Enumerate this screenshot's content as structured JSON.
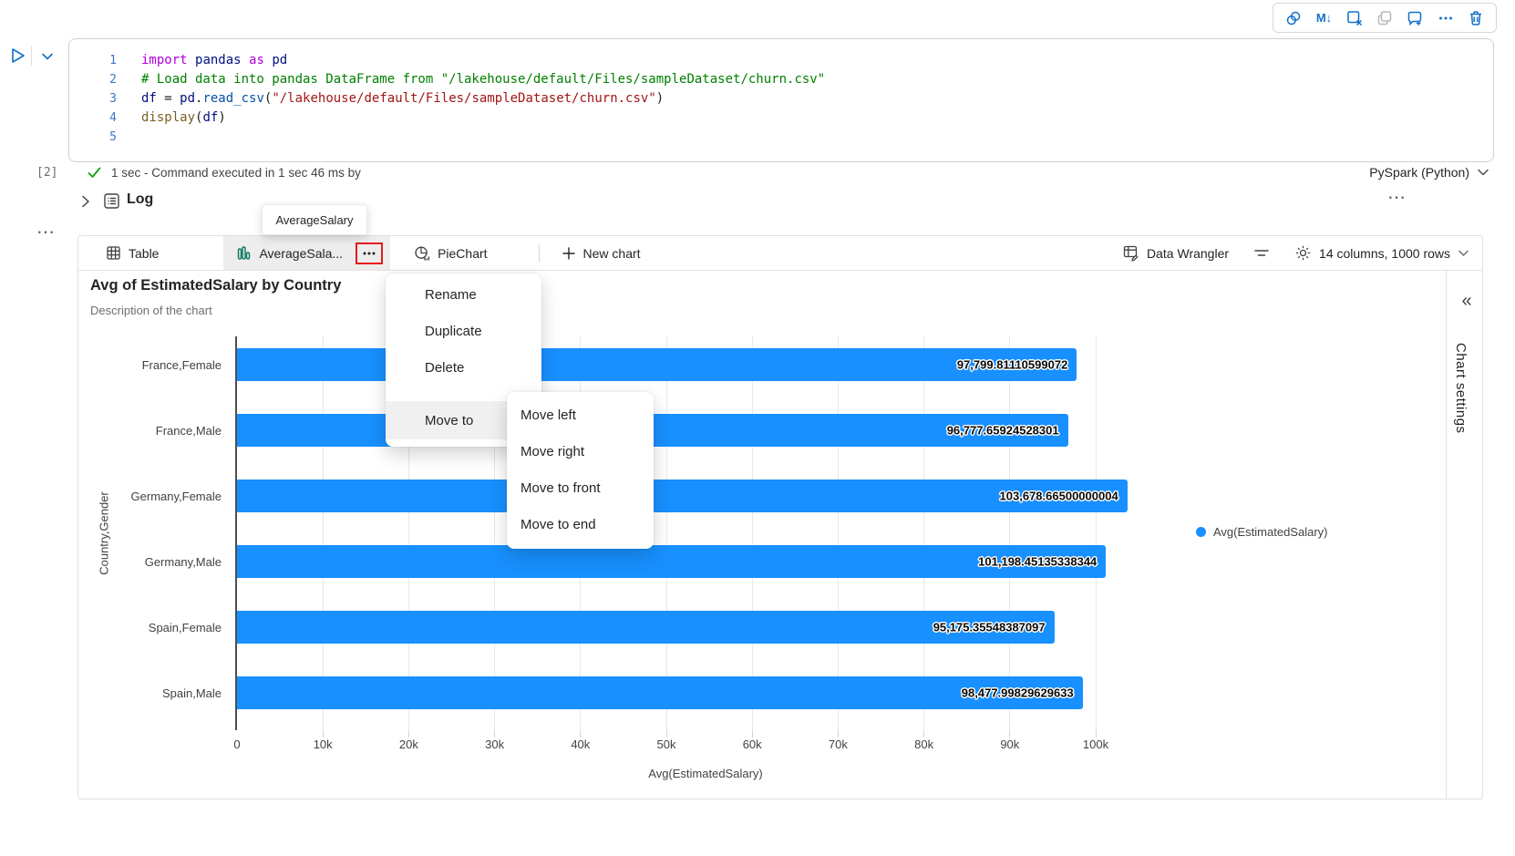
{
  "colors": {
    "accent_blue": "#1170c9",
    "bar_blue": "#1890ff",
    "tab_icon_teal": "#117865",
    "annotation_red": "#e8191f",
    "check_green": "#13a10e"
  },
  "cell_toolbar": {
    "icons": [
      "copilot-icon",
      "markdown-down-icon",
      "clear-outputs-icon",
      "copy-cell-icon",
      "add-comment-icon",
      "more-commands-icon",
      "delete-cell-icon"
    ]
  },
  "code": {
    "lines": [
      {
        "n": "1",
        "segs": [
          [
            "kw",
            "import"
          ],
          [
            "pl",
            " "
          ],
          [
            "name",
            "pandas"
          ],
          [
            "pl",
            " "
          ],
          [
            "kw",
            "as"
          ],
          [
            "pl",
            " "
          ],
          [
            "name",
            "pd"
          ]
        ]
      },
      {
        "n": "2",
        "segs": [
          [
            "cm",
            "# Load data into pandas DataFrame from \"/lakehouse/default/Files/sampleDataset/churn.csv\""
          ]
        ]
      },
      {
        "n": "3",
        "segs": [
          [
            "name",
            "df"
          ],
          [
            "pl",
            " = "
          ],
          [
            "name",
            "pd"
          ],
          [
            "pl",
            "."
          ],
          [
            "call",
            "read_csv"
          ],
          [
            "pl",
            "("
          ],
          [
            "str",
            "\"/lakehouse/default/Files/sampleDataset/churn.csv\""
          ],
          [
            "pl",
            ")"
          ]
        ]
      },
      {
        "n": "4",
        "segs": [
          [
            "fn",
            "display"
          ],
          [
            "pl",
            "("
          ],
          [
            "name",
            "df"
          ],
          [
            "pl",
            ")"
          ]
        ]
      },
      {
        "n": "5",
        "segs": []
      }
    ]
  },
  "status": {
    "execution_count": "[2]",
    "message": "1 sec - Command executed in 1 sec 46 ms by",
    "language": "PySpark (Python)"
  },
  "log": {
    "label": "Log",
    "more": "⋯"
  },
  "cell_more": "⋯",
  "tooltip": {
    "text": "AverageSalary"
  },
  "chart_tabs": {
    "table": "Table",
    "average": "AverageSala...",
    "pie": "PieChart",
    "new_chart": "New chart"
  },
  "tabbar_right": {
    "data_wrangler": "Data Wrangler",
    "summary": "14 columns, 1000 rows"
  },
  "chart_header": {
    "title": "Avg of EstimatedSalary by Country",
    "description": "Description of the chart"
  },
  "context_menu": {
    "items": [
      "Rename",
      "Duplicate",
      "Delete"
    ],
    "move_to": "Move to",
    "submenu": [
      "Move left",
      "Move right",
      "Move to front",
      "Move to end"
    ]
  },
  "settings_panel": {
    "label": "Chart settings"
  },
  "chart_data": {
    "type": "bar",
    "orientation": "horizontal",
    "title": "Avg of EstimatedSalary by Country",
    "subtitle": "Description of the chart",
    "categories": [
      "France,Female",
      "France,Male",
      "Germany,Female",
      "Germany,Male",
      "Spain,Female",
      "Spain,Male"
    ],
    "values": [
      97799.81110599072,
      96777.65924528301,
      103678.66500000004,
      101198.45135338344,
      95175.35548387097,
      98477.99829629633
    ],
    "value_labels": [
      "97,799.81110599072",
      "96,777.65924528301",
      "103,678.66500000004",
      "101,198.45135338344",
      "95,175.35548387097",
      "98,477.99829629633"
    ],
    "xlabel": "Avg(EstimatedSalary)",
    "ylabel": "Country,Gender",
    "xlim": [
      0,
      109000
    ],
    "xticks": [
      "0",
      "10k",
      "20k",
      "30k",
      "40k",
      "50k",
      "60k",
      "70k",
      "80k",
      "90k",
      "100k"
    ],
    "legend": [
      "Avg(EstimatedSalary)"
    ],
    "legend_position": "right",
    "grid": true,
    "bar_color": "#1890ff"
  }
}
